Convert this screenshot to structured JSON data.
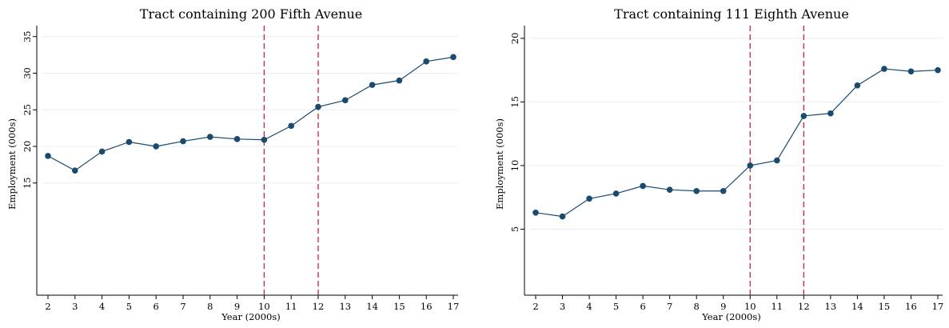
{
  "chart_data": [
    {
      "type": "line",
      "title": "Tract containing 200 Fifth Avenue",
      "xlabel": "Year (2000s)",
      "ylabel": "Employment (000s)",
      "x": [
        2,
        3,
        4,
        5,
        6,
        7,
        8,
        9,
        10,
        11,
        12,
        13,
        14,
        15,
        16,
        17
      ],
      "series": [
        {
          "values": [
            18.7,
            16.7,
            19.3,
            20.6,
            20.0,
            20.7,
            21.3,
            21.0,
            20.9,
            22.8,
            25.4,
            26.3,
            28.4,
            29.0,
            31.6,
            32.2
          ]
        }
      ],
      "xticks": [
        2,
        3,
        4,
        5,
        6,
        7,
        8,
        9,
        10,
        11,
        12,
        13,
        14,
        15,
        16,
        17
      ],
      "yticks": [
        15,
        20,
        25,
        30,
        35
      ],
      "xlim": [
        2,
        17
      ],
      "ylim": [
        0,
        36.5
      ],
      "vlines": [
        10,
        12
      ],
      "grid": true,
      "line_color": "#1a4a6e",
      "vline_color": "#cc1f45"
    },
    {
      "type": "line",
      "title": "Tract containing 111 Eighth Avenue",
      "xlabel": "Year (2000s)",
      "ylabel": "Employment (000s)",
      "x": [
        2,
        3,
        4,
        5,
        6,
        7,
        8,
        9,
        10,
        11,
        12,
        13,
        14,
        15,
        16,
        17
      ],
      "series": [
        {
          "values": [
            6.3,
            6.0,
            7.4,
            7.8,
            8.4,
            8.1,
            8.0,
            8.0,
            10.0,
            10.4,
            13.9,
            14.1,
            16.3,
            17.6,
            17.4,
            17.5
          ]
        }
      ],
      "xticks": [
        2,
        3,
        4,
        5,
        6,
        7,
        8,
        9,
        10,
        11,
        12,
        13,
        14,
        15,
        16,
        17
      ],
      "yticks": [
        5,
        10,
        15,
        20
      ],
      "xlim": [
        2,
        17
      ],
      "ylim": [
        0,
        21
      ],
      "vlines": [
        10,
        12
      ],
      "grid": true,
      "line_color": "#1a4a6e",
      "vline_color": "#cc1f45"
    }
  ]
}
